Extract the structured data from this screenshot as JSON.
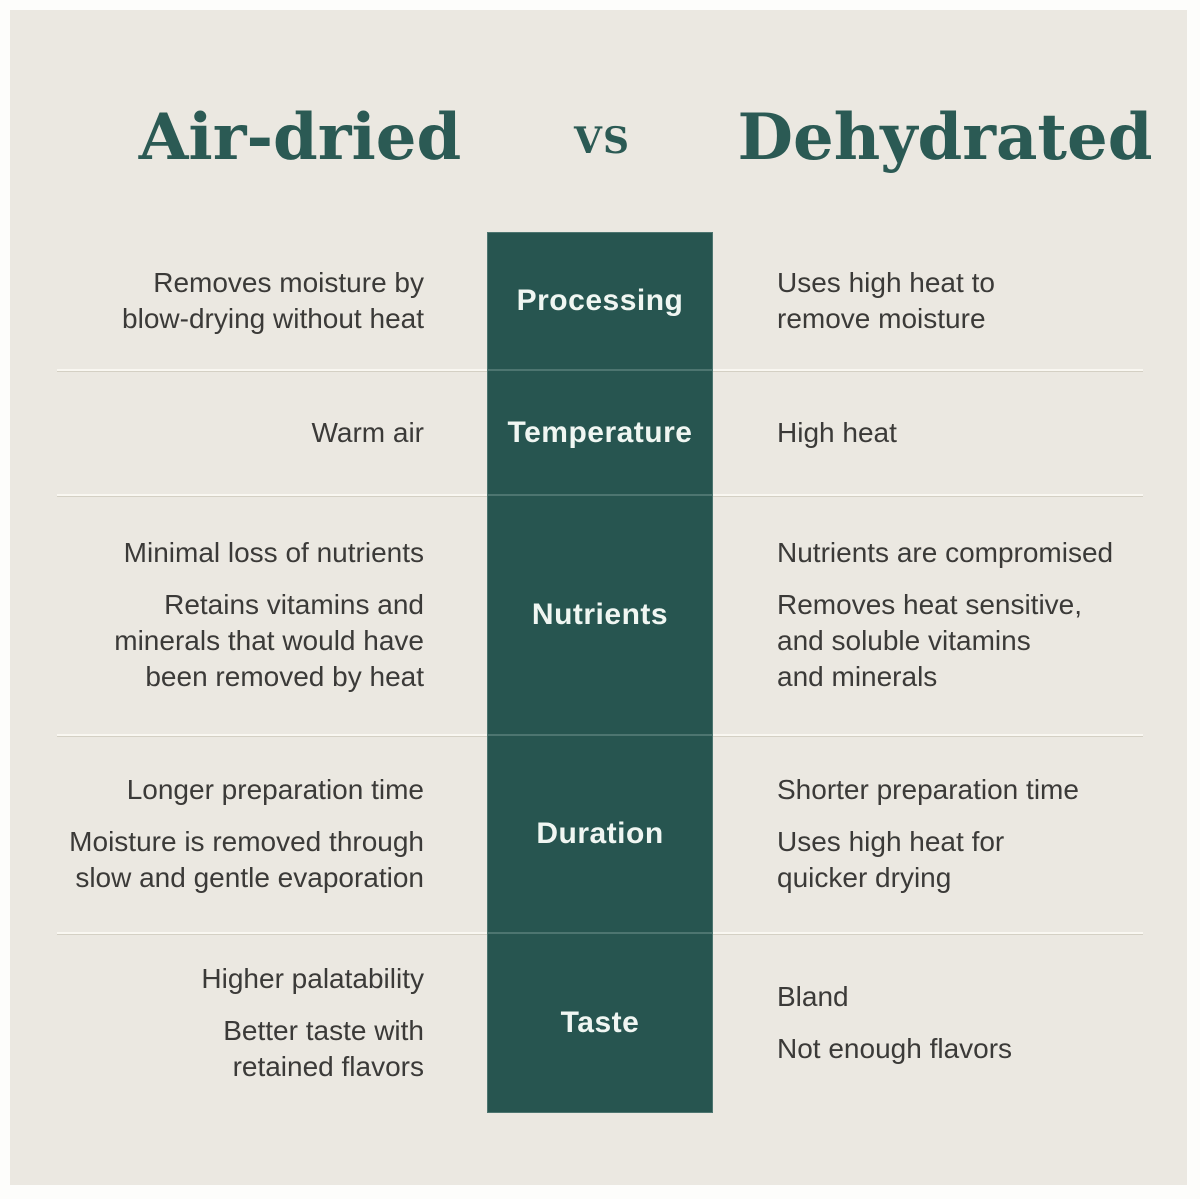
{
  "title": {
    "left": "Air-dried",
    "separator": "vs",
    "right": "Dehydrated"
  },
  "colors": {
    "frame": "#fdfdfb",
    "background": "#ebe8e1",
    "accent_teal": "#275550",
    "title_text": "#2b5a54",
    "body_text": "#3b3a38",
    "label_text": "#f0f6f2",
    "divider": "#f9f7f1"
  },
  "rows": [
    {
      "label": "Processing",
      "left": [
        "Removes moisture by\nblow-drying without heat"
      ],
      "right": [
        "Uses high heat to\nremove moisture"
      ]
    },
    {
      "label": "Temperature",
      "left": [
        "Warm air"
      ],
      "right": [
        "High heat"
      ]
    },
    {
      "label": "Nutrients",
      "left": [
        "Minimal loss of nutrients",
        "Retains vitamins and\nminerals that would have\nbeen removed by heat"
      ],
      "right": [
        "Nutrients are compromised",
        "Removes heat sensitive,\nand soluble vitamins\nand minerals"
      ]
    },
    {
      "label": "Duration",
      "left": [
        "Longer preparation time",
        "Moisture is removed through\nslow and gentle evaporation"
      ],
      "right": [
        "Shorter preparation time",
        "Uses high heat for\nquicker drying"
      ]
    },
    {
      "label": "Taste",
      "left": [
        "Higher palatability",
        "Better taste with\nretained flavors"
      ],
      "right": [
        "Bland",
        "Not enough flavors"
      ]
    }
  ]
}
